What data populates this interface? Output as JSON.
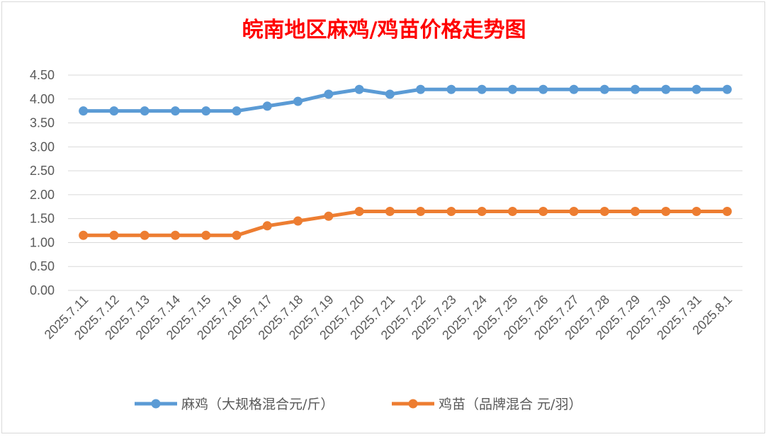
{
  "chart_data": {
    "type": "line",
    "title": "皖南地区麻鸡/鸡苗价格走势图",
    "categories": [
      "2025.7.11",
      "2025.7.12",
      "2025.7.13",
      "2025.7.14",
      "2025.7.15",
      "2025.7.16",
      "2025.7.17",
      "2025.7.18",
      "2025.7.19",
      "2025.7.20",
      "2025.7.21",
      "2025.7.22",
      "2025.7.23",
      "2025.7.24",
      "2025.7.25",
      "2025.7.26",
      "2025.7.27",
      "2025.7.28",
      "2025.7.29",
      "2025.7.30",
      "2025.7.31",
      "2025.8.1"
    ],
    "series": [
      {
        "name": "麻鸡（大规格混合元/斤）",
        "color": "#5b9bd5",
        "values": [
          3.75,
          3.75,
          3.75,
          3.75,
          3.75,
          3.75,
          3.85,
          3.95,
          4.1,
          4.2,
          4.1,
          4.2,
          4.2,
          4.2,
          4.2,
          4.2,
          4.2,
          4.2,
          4.2,
          4.2,
          4.2,
          4.2
        ]
      },
      {
        "name": "鸡苗（品牌混合 元/羽）",
        "color": "#ed7d31",
        "values": [
          1.15,
          1.15,
          1.15,
          1.15,
          1.15,
          1.15,
          1.35,
          1.45,
          1.55,
          1.65,
          1.65,
          1.65,
          1.65,
          1.65,
          1.65,
          1.65,
          1.65,
          1.65,
          1.65,
          1.65,
          1.65,
          1.65
        ]
      }
    ],
    "yticks": [
      "0.00",
      "0.50",
      "1.00",
      "1.50",
      "2.00",
      "2.50",
      "3.00",
      "3.50",
      "4.00",
      "4.50"
    ],
    "ylim": [
      0,
      4.5
    ],
    "grid": true,
    "legend_position": "bottom",
    "xlabel": "",
    "ylabel": ""
  }
}
